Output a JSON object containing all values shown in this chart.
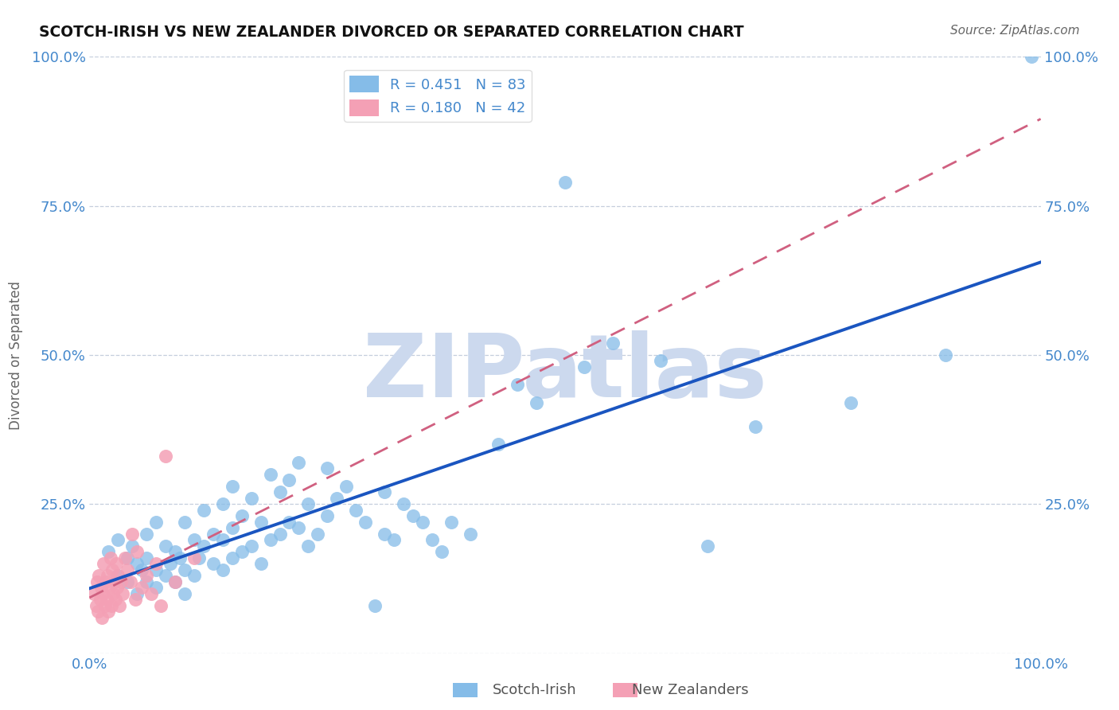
{
  "title": "SCOTCH-IRISH VS NEW ZEALANDER DIVORCED OR SEPARATED CORRELATION CHART",
  "source": "Source: ZipAtlas.com",
  "ylabel": "Divorced or Separated",
  "xlim": [
    0,
    1
  ],
  "ylim": [
    0,
    1
  ],
  "legend_blue_r": "R = 0.451",
  "legend_blue_n": "N = 83",
  "legend_pink_r": "R = 0.180",
  "legend_pink_n": "N = 42",
  "blue_color": "#85bce8",
  "pink_color": "#f4a0b5",
  "trend_blue_color": "#1a55c0",
  "trend_pink_color": "#d06080",
  "label_color": "#4488cc",
  "watermark": "ZIPatlas",
  "watermark_color": "#ccd9ee",
  "blue_scatter_x": [
    0.02,
    0.03,
    0.03,
    0.04,
    0.04,
    0.045,
    0.05,
    0.05,
    0.055,
    0.06,
    0.06,
    0.06,
    0.07,
    0.07,
    0.07,
    0.08,
    0.08,
    0.085,
    0.09,
    0.09,
    0.095,
    0.1,
    0.1,
    0.1,
    0.11,
    0.11,
    0.115,
    0.12,
    0.12,
    0.13,
    0.13,
    0.14,
    0.14,
    0.14,
    0.15,
    0.15,
    0.15,
    0.16,
    0.16,
    0.17,
    0.17,
    0.18,
    0.18,
    0.19,
    0.19,
    0.2,
    0.2,
    0.21,
    0.21,
    0.22,
    0.22,
    0.23,
    0.23,
    0.24,
    0.25,
    0.25,
    0.26,
    0.27,
    0.28,
    0.29,
    0.3,
    0.31,
    0.31,
    0.32,
    0.33,
    0.34,
    0.35,
    0.36,
    0.37,
    0.38,
    0.4,
    0.43,
    0.45,
    0.47,
    0.5,
    0.52,
    0.55,
    0.6,
    0.65,
    0.7,
    0.8,
    0.9,
    0.99
  ],
  "blue_scatter_y": [
    0.17,
    0.13,
    0.19,
    0.12,
    0.16,
    0.18,
    0.1,
    0.15,
    0.14,
    0.12,
    0.16,
    0.2,
    0.11,
    0.14,
    0.22,
    0.13,
    0.18,
    0.15,
    0.12,
    0.17,
    0.16,
    0.1,
    0.14,
    0.22,
    0.13,
    0.19,
    0.16,
    0.18,
    0.24,
    0.15,
    0.2,
    0.14,
    0.19,
    0.25,
    0.16,
    0.21,
    0.28,
    0.17,
    0.23,
    0.18,
    0.26,
    0.15,
    0.22,
    0.19,
    0.3,
    0.2,
    0.27,
    0.22,
    0.29,
    0.21,
    0.32,
    0.18,
    0.25,
    0.2,
    0.23,
    0.31,
    0.26,
    0.28,
    0.24,
    0.22,
    0.08,
    0.2,
    0.27,
    0.19,
    0.25,
    0.23,
    0.22,
    0.19,
    0.17,
    0.22,
    0.2,
    0.35,
    0.45,
    0.42,
    0.79,
    0.48,
    0.52,
    0.49,
    0.18,
    0.38,
    0.42,
    0.5,
    1.0
  ],
  "pink_scatter_x": [
    0.005,
    0.007,
    0.008,
    0.009,
    0.01,
    0.011,
    0.012,
    0.013,
    0.014,
    0.015,
    0.016,
    0.017,
    0.018,
    0.019,
    0.02,
    0.021,
    0.022,
    0.023,
    0.024,
    0.025,
    0.026,
    0.027,
    0.028,
    0.029,
    0.03,
    0.031,
    0.033,
    0.035,
    0.037,
    0.04,
    0.043,
    0.045,
    0.048,
    0.05,
    0.055,
    0.06,
    0.065,
    0.07,
    0.075,
    0.08,
    0.09,
    0.11
  ],
  "pink_scatter_y": [
    0.1,
    0.08,
    0.12,
    0.07,
    0.13,
    0.09,
    0.11,
    0.06,
    0.1,
    0.15,
    0.08,
    0.12,
    0.09,
    0.13,
    0.07,
    0.11,
    0.16,
    0.08,
    0.14,
    0.1,
    0.12,
    0.09,
    0.15,
    0.11,
    0.13,
    0.08,
    0.12,
    0.1,
    0.16,
    0.14,
    0.12,
    0.2,
    0.09,
    0.17,
    0.11,
    0.13,
    0.1,
    0.15,
    0.08,
    0.33,
    0.12,
    0.16
  ]
}
